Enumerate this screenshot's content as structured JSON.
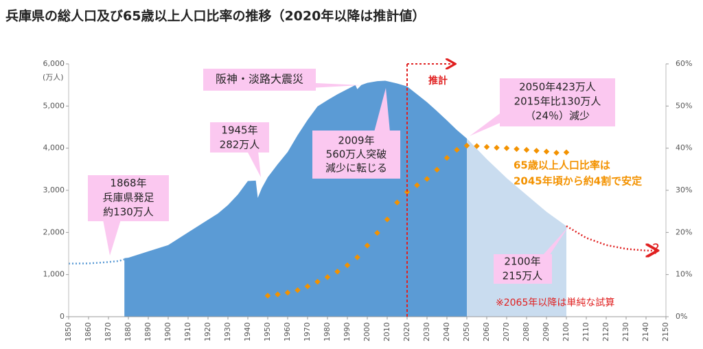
{
  "chart_data": {
    "type": "area",
    "title": "兵庫県の総人口及び65歳以上人口比率の推移（2020年以降は推計値）",
    "y_unit_label": "(万人)",
    "xlim": [
      1850,
      2150
    ],
    "xticks": [
      1850,
      1860,
      1870,
      1880,
      1890,
      1900,
      1910,
      1920,
      1930,
      1940,
      1950,
      1960,
      1970,
      1980,
      1990,
      2000,
      2010,
      2020,
      2030,
      2040,
      2050,
      2060,
      2070,
      2080,
      2090,
      2100,
      2110,
      2120,
      2130,
      2140,
      2150
    ],
    "ylim": [
      0,
      6000
    ],
    "yticks": [
      0,
      {
        "value": 1000,
        "label": "1,000"
      },
      {
        "value": 2000,
        "label": "2,000"
      },
      {
        "value": 3000,
        "label": "3,000"
      },
      {
        "value": 4000,
        "label": "4,000"
      },
      {
        "value": 5000,
        "label": "5,000"
      },
      {
        "value": 6000,
        "label": "6,000"
      }
    ],
    "y2lim": [
      0,
      60
    ],
    "y2ticks": [
      {
        "value": 0,
        "label": "0%"
      },
      {
        "value": 10,
        "label": "10%"
      },
      {
        "value": 20,
        "label": "20%"
      },
      {
        "value": 30,
        "label": "30%"
      },
      {
        "value": 40,
        "label": "40%"
      },
      {
        "value": 50,
        "label": "50%"
      },
      {
        "value": 60,
        "label": "60%"
      }
    ],
    "estimate_start": 2020,
    "series": [
      {
        "style": "dotted",
        "color": "#5b9bd5",
        "x": [
          1850,
          1860,
          1868,
          1875,
          1878
        ],
        "values": [
          1260,
          1265,
          1290,
          1320,
          1360
        ]
      },
      {
        "style": "area",
        "color": "#5b9bd5",
        "x": [
          1878,
          1880,
          1890,
          1900,
          1910,
          1920,
          1925,
          1930,
          1935,
          1940,
          1944,
          1945,
          1947,
          1950,
          1955,
          1960,
          1965,
          1970,
          1975,
          1980,
          1985,
          1990,
          1994,
          1995,
          1997,
          2000,
          2005,
          2009,
          2010,
          2015,
          2020,
          2025,
          2030,
          2035,
          2040,
          2045,
          2050
        ],
        "values": [
          1390,
          1400,
          1550,
          1700,
          2000,
          2300,
          2450,
          2650,
          2900,
          3220,
          3230,
          2820,
          3050,
          3310,
          3620,
          3910,
          4310,
          4670,
          4990,
          5140,
          5280,
          5400,
          5500,
          5400,
          5500,
          5550,
          5590,
          5600,
          5590,
          5535,
          5465,
          5280,
          5090,
          4880,
          4660,
          4430,
          4230
        ]
      },
      {
        "style": "area",
        "color": "#c9dcef",
        "x": [
          2050,
          2060,
          2070,
          2080,
          2090,
          2100
        ],
        "values": [
          4230,
          3740,
          3290,
          2890,
          2490,
          2150
        ]
      },
      {
        "style": "dotted-arrow",
        "color": "#e02020",
        "x": [
          2100,
          2110,
          2120,
          2130,
          2140,
          2145
        ],
        "values": [
          2150,
          1870,
          1700,
          1610,
          1570,
          1570
        ]
      },
      {
        "style": "diamonds",
        "axis": "y2",
        "color": "#f39200",
        "x": [
          1950,
          1955,
          1960,
          1965,
          1970,
          1975,
          1980,
          1985,
          1990,
          1995,
          2000,
          2005,
          2010,
          2015,
          2020,
          2025,
          2030,
          2035,
          2040,
          2045,
          2050,
          2055,
          2060,
          2065,
          2070,
          2075,
          2080,
          2085,
          2090,
          2095,
          2100
        ],
        "values": [
          5,
          5.3,
          5.7,
          6.3,
          7.2,
          8.3,
          9.4,
          10.7,
          12.2,
          14.1,
          16.9,
          19.9,
          23.1,
          27.1,
          29.6,
          31.2,
          32.7,
          34.9,
          37.7,
          39.6,
          40.6,
          40.5,
          40.3,
          40.1,
          40.0,
          39.8,
          39.6,
          39.4,
          39.2,
          38.9,
          39.0
        ]
      }
    ],
    "annotations": [
      {
        "lines": [
          "阪神・淡路大震災"
        ]
      },
      {
        "lines": [
          "1945年",
          "282万人"
        ]
      },
      {
        "lines": [
          "1868年",
          "兵庫県発足",
          "約130万人"
        ]
      },
      {
        "lines": [
          "2009年",
          "560万人突破",
          "減少に転じる"
        ]
      },
      {
        "lines": [
          "2050年423万人",
          "2015年比130万人",
          "（24％）減少"
        ]
      },
      {
        "lines": [
          "2100年",
          "215万人"
        ]
      },
      {
        "lines": [
          "65歳以上人口比率は",
          "2045年頃から約4割で安定"
        ]
      },
      {
        "lines": [
          "推計"
        ]
      },
      {
        "lines": [
          "※2065年以降は単純な試算"
        ]
      },
      {
        "lines": [
          "?"
        ]
      }
    ]
  }
}
